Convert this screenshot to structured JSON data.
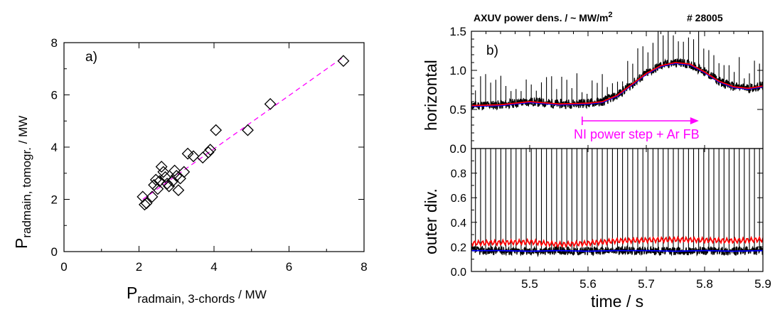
{
  "panel_a": {
    "label": "a)",
    "ylabel_main": "P",
    "ylabel_sub": "radmain, tomogr.",
    "ylabel_unit": " / MW",
    "xlabel_main": "P",
    "xlabel_sub": "radmain, 3-chords",
    "xlabel_unit": "  / MW",
    "colors": {
      "markers": "#000000",
      "fit": "#ff00ff"
    }
  },
  "panel_b": {
    "label": "b)",
    "title_left": "AXUV power dens. / ~ MW/m",
    "title_sup": "2",
    "title_right": "# 28005",
    "upper_ylabel": "horizontal",
    "lower_ylabel": "outer div.",
    "xlabel": "time / s",
    "annotation": "NI power step + Ar FB",
    "colors": {
      "raw": "#000000",
      "red": "#ff0000",
      "blue": "#0000ff",
      "annotation": "#ff00ff"
    }
  },
  "chart_data": [
    {
      "type": "scatter",
      "panel": "a)",
      "xlim": [
        0,
        8
      ],
      "ylim": [
        0,
        8
      ],
      "xticks": [
        "0",
        "2",
        "4",
        "6",
        "8"
      ],
      "yticks": [
        "0",
        "2",
        "4",
        "6",
        "8"
      ],
      "xlabel": "P radmain, 3-chords / MW",
      "ylabel": "P radmain, tomogr. / MW",
      "marker": "diamond",
      "points": [
        [
          2.1,
          2.1
        ],
        [
          2.15,
          1.8
        ],
        [
          2.2,
          1.85
        ],
        [
          2.35,
          2.1
        ],
        [
          2.4,
          2.55
        ],
        [
          2.45,
          2.75
        ],
        [
          2.5,
          2.4
        ],
        [
          2.55,
          2.7
        ],
        [
          2.6,
          3.25
        ],
        [
          2.65,
          3.05
        ],
        [
          2.7,
          2.85
        ],
        [
          2.75,
          2.6
        ],
        [
          2.8,
          2.5
        ],
        [
          2.9,
          2.7
        ],
        [
          2.95,
          3.1
        ],
        [
          3.0,
          2.9
        ],
        [
          3.05,
          2.35
        ],
        [
          3.1,
          2.8
        ],
        [
          3.2,
          3.05
        ],
        [
          3.3,
          3.75
        ],
        [
          3.45,
          3.65
        ],
        [
          3.7,
          3.6
        ],
        [
          3.85,
          3.8
        ],
        [
          3.9,
          3.9
        ],
        [
          4.05,
          4.65
        ],
        [
          4.9,
          4.65
        ],
        [
          5.5,
          5.65
        ],
        [
          7.45,
          7.3
        ]
      ],
      "fit_line": {
        "x": [
          2.1,
          7.45
        ],
        "y": [
          2.0,
          7.45
        ],
        "style": "dashed"
      }
    },
    {
      "type": "line",
      "panel": "b) horizontal",
      "xlim": [
        5.4,
        5.9
      ],
      "ylim": [
        0.0,
        1.5
      ],
      "yticks": [
        "0.0",
        "0.5",
        "1.0",
        "1.5"
      ],
      "ylabel": "horizontal",
      "series": [
        {
          "color": "red",
          "x": [
            5.4,
            5.45,
            5.5,
            5.55,
            5.6,
            5.625,
            5.65,
            5.675,
            5.7,
            5.725,
            5.75,
            5.775,
            5.8,
            5.825,
            5.85,
            5.875,
            5.9
          ],
          "values": [
            0.55,
            0.56,
            0.6,
            0.57,
            0.58,
            0.6,
            0.68,
            0.82,
            0.96,
            1.06,
            1.1,
            1.08,
            0.98,
            0.86,
            0.79,
            0.77,
            0.8
          ]
        },
        {
          "color": "blue",
          "x": [
            5.4,
            5.45,
            5.5,
            5.55,
            5.6,
            5.625,
            5.65,
            5.675,
            5.7,
            5.725,
            5.75,
            5.775,
            5.8,
            5.825,
            5.85,
            5.875,
            5.9
          ],
          "values": [
            0.54,
            0.55,
            0.59,
            0.56,
            0.57,
            0.59,
            0.67,
            0.81,
            0.95,
            1.05,
            1.09,
            1.07,
            0.97,
            0.85,
            0.78,
            0.76,
            0.79
          ]
        }
      ],
      "spikes": {
        "start": 5.407,
        "end": 5.898,
        "period": 0.0087,
        "baseline_series": "red",
        "peak_max": 1.55
      }
    },
    {
      "type": "line",
      "panel": "b) outer div.",
      "xlim": [
        5.4,
        5.9
      ],
      "ylim": [
        0.0,
        1.0
      ],
      "xticks": [
        "5.5",
        "5.6",
        "5.7",
        "5.8",
        "5.9"
      ],
      "yticks": [
        "0.0",
        "0.2",
        "0.4",
        "0.6",
        "0.8"
      ],
      "ylabel": "outer div.",
      "xlabel": "time / s",
      "annotation_arrow": {
        "x_start": 5.59,
        "x_end": 5.79
      },
      "series": [
        {
          "color": "red",
          "x": [
            5.4,
            5.45,
            5.5,
            5.55,
            5.6,
            5.65,
            5.7,
            5.75,
            5.8,
            5.85,
            5.9
          ],
          "values": [
            0.23,
            0.235,
            0.24,
            0.22,
            0.23,
            0.25,
            0.255,
            0.26,
            0.255,
            0.25,
            0.26
          ]
        },
        {
          "color": "blue",
          "x": [
            5.4,
            5.45,
            5.5,
            5.55,
            5.6,
            5.65,
            5.7,
            5.75,
            5.8,
            5.85,
            5.9
          ],
          "values": [
            0.17,
            0.17,
            0.165,
            0.17,
            0.165,
            0.17,
            0.17,
            0.165,
            0.17,
            0.165,
            0.17
          ]
        }
      ],
      "spikes": {
        "start": 5.407,
        "end": 5.898,
        "period": 0.0087,
        "baseline_series": "blue",
        "peak_max": 1.0
      }
    }
  ]
}
